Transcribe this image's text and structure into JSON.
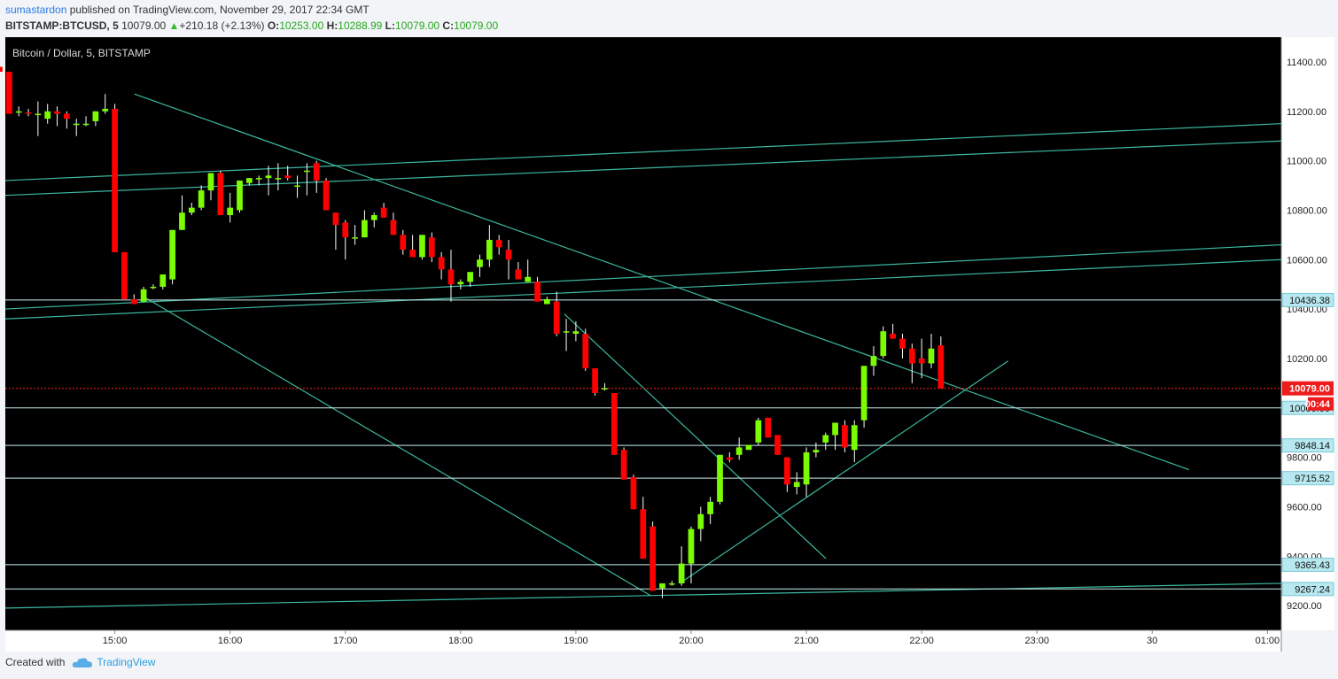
{
  "header": {
    "author": "sumastardon",
    "published": "published on TradingView.com, November 29, 2017 22:34 GMT",
    "symbol": "BITSTAMP:BTCUSD, 5",
    "price": "10079.00",
    "change": "+210.18 (+2.13%)",
    "o_label": "O:",
    "o": "10253.00",
    "h_label": "H:",
    "h": "10288.99",
    "l_label": "L:",
    "l": "10079.00",
    "c_label": "C:",
    "c": "10079.00"
  },
  "footer": {
    "created": "Created with",
    "brand": "TradingView"
  },
  "colors": {
    "up": "#7cfc00",
    "down": "#ff0000",
    "line": "#3cb8a0",
    "bg": "#000000"
  },
  "chart_data": {
    "type": "candlestick",
    "title": "Bitcoin / Dollar, 5, BITSTAMP",
    "ylim": [
      9100,
      11500
    ],
    "yticks": [
      9200,
      9400,
      9600,
      9800,
      10000,
      10200,
      10400,
      10600,
      10800,
      11000,
      11200,
      11400
    ],
    "xlim": [
      14.05,
      25.12
    ],
    "xticks": [
      {
        "x": 15,
        "label": "15:00"
      },
      {
        "x": 16,
        "label": "16:00"
      },
      {
        "x": 17,
        "label": "17:00"
      },
      {
        "x": 18,
        "label": "18:00"
      },
      {
        "x": 19,
        "label": "19:00"
      },
      {
        "x": 20,
        "label": "20:00"
      },
      {
        "x": 21,
        "label": "21:00"
      },
      {
        "x": 22,
        "label": "22:00"
      },
      {
        "x": 23,
        "label": "23:00"
      },
      {
        "x": 24,
        "label": "30"
      },
      {
        "x": 25,
        "label": "01:00"
      }
    ],
    "candles": [
      [
        11380,
        11400,
        11360,
        11360
      ],
      [
        11360,
        11360,
        11190,
        11190
      ],
      [
        11200,
        11220,
        11180,
        11200
      ],
      [
        11195,
        11210,
        11180,
        11190
      ],
      [
        11190,
        11240,
        11100,
        11190
      ],
      [
        11170,
        11230,
        11150,
        11200
      ],
      [
        11200,
        11220,
        11140,
        11190
      ],
      [
        11190,
        11200,
        11130,
        11170
      ],
      [
        11150,
        11170,
        11100,
        11150
      ],
      [
        11150,
        11180,
        11140,
        11150
      ],
      [
        11160,
        11200,
        11140,
        11200
      ],
      [
        11200,
        11270,
        11190,
        11210
      ],
      [
        11210,
        11230,
        10630,
        10630
      ],
      [
        10630,
        10630,
        10440,
        10440
      ],
      [
        10440,
        10460,
        10420,
        10420
      ],
      [
        10430,
        10490,
        10430,
        10480
      ],
      [
        10490,
        10500,
        10480,
        10490
      ],
      [
        10490,
        10540,
        10480,
        10540
      ],
      [
        10520,
        10720,
        10500,
        10720
      ],
      [
        10720,
        10860,
        10720,
        10790
      ],
      [
        10790,
        10830,
        10780,
        10810
      ],
      [
        10810,
        10900,
        10800,
        10880
      ],
      [
        10880,
        10950,
        10840,
        10950
      ],
      [
        10950,
        10960,
        10780,
        10780
      ],
      [
        10780,
        10870,
        10750,
        10810
      ],
      [
        10800,
        10920,
        10790,
        10920
      ],
      [
        10910,
        10930,
        10900,
        10930
      ],
      [
        10930,
        10940,
        10900,
        10930
      ],
      [
        10930,
        10980,
        10860,
        10940
      ],
      [
        10930,
        10990,
        10880,
        10930
      ],
      [
        10940,
        10980,
        10920,
        10930
      ],
      [
        10900,
        10940,
        10850,
        10900
      ],
      [
        10960,
        10990,
        10860,
        10960
      ],
      [
        10990,
        11000,
        10870,
        10920
      ],
      [
        10920,
        10930,
        10800,
        10800
      ],
      [
        10790,
        10790,
        10640,
        10740
      ],
      [
        10750,
        10760,
        10600,
        10690
      ],
      [
        10690,
        10740,
        10660,
        10690
      ],
      [
        10690,
        10800,
        10690,
        10760
      ],
      [
        10760,
        10790,
        10730,
        10780
      ],
      [
        10810,
        10830,
        10770,
        10770
      ],
      [
        10760,
        10790,
        10700,
        10700
      ],
      [
        10700,
        10720,
        10620,
        10640
      ],
      [
        10640,
        10700,
        10620,
        10610
      ],
      [
        10610,
        10700,
        10600,
        10700
      ],
      [
        10690,
        10710,
        10590,
        10610
      ],
      [
        10610,
        10630,
        10520,
        10560
      ],
      [
        10560,
        10640,
        10430,
        10500
      ],
      [
        10500,
        10520,
        10480,
        10510
      ],
      [
        10510,
        10540,
        10490,
        10550
      ],
      [
        10570,
        10620,
        10530,
        10600
      ],
      [
        10600,
        10740,
        10570,
        10680
      ],
      [
        10680,
        10700,
        10620,
        10650
      ],
      [
        10640,
        10680,
        10520,
        10600
      ],
      [
        10560,
        10590,
        10520,
        10520
      ],
      [
        10510,
        10600,
        10510,
        10530
      ],
      [
        10510,
        10530,
        10430,
        10430
      ],
      [
        10420,
        10450,
        10420,
        10440
      ],
      [
        10430,
        10470,
        10290,
        10300
      ],
      [
        10310,
        10360,
        10230,
        10310
      ],
      [
        10300,
        10350,
        10270,
        10310
      ],
      [
        10300,
        10320,
        10150,
        10160
      ],
      [
        10160,
        10160,
        10050,
        10060
      ],
      [
        10080,
        10100,
        10070,
        10080
      ],
      [
        10060,
        10060,
        9810,
        9810
      ],
      [
        9830,
        9840,
        9710,
        9710
      ],
      [
        9720,
        9730,
        9590,
        9590
      ],
      [
        9590,
        9640,
        9390,
        9390
      ],
      [
        9520,
        9540,
        9260,
        9260
      ],
      [
        9270,
        9290,
        9230,
        9290
      ],
      [
        9290,
        9300,
        9280,
        9290
      ],
      [
        9290,
        9440,
        9280,
        9370
      ],
      [
        9370,
        9520,
        9290,
        9510
      ],
      [
        9510,
        9600,
        9460,
        9570
      ],
      [
        9570,
        9640,
        9530,
        9620
      ],
      [
        9620,
        9810,
        9610,
        9810
      ],
      [
        9800,
        9820,
        9780,
        9790
      ],
      [
        9810,
        9880,
        9790,
        9840
      ],
      [
        9830,
        9850,
        9830,
        9850
      ],
      [
        9860,
        9960,
        9850,
        9950
      ],
      [
        9960,
        9960,
        9880,
        9880
      ],
      [
        9890,
        9890,
        9810,
        9810
      ],
      [
        9800,
        9800,
        9660,
        9690
      ],
      [
        9680,
        9740,
        9650,
        9700
      ],
      [
        9690,
        9840,
        9640,
        9820
      ],
      [
        9820,
        9860,
        9800,
        9830
      ],
      [
        9860,
        9900,
        9830,
        9890
      ],
      [
        9890,
        9940,
        9830,
        9940
      ],
      [
        9930,
        9950,
        9820,
        9840
      ],
      [
        9830,
        9950,
        9780,
        9930
      ],
      [
        9950,
        10170,
        9920,
        10170
      ],
      [
        10170,
        10250,
        10130,
        10210
      ],
      [
        10210,
        10330,
        10200,
        10310
      ],
      [
        10300,
        10340,
        10280,
        10280
      ],
      [
        10280,
        10300,
        10200,
        10240
      ],
      [
        10240,
        10260,
        10100,
        10180
      ],
      [
        10200,
        10280,
        10120,
        10180
      ],
      [
        10180,
        10300,
        10160,
        10240
      ],
      [
        10253,
        10288.99,
        10079,
        10079
      ]
    ],
    "trendlines": [
      {
        "x1": 14.05,
        "y1": 10920,
        "x2": 25.12,
        "y2": 11150
      },
      {
        "x1": 14.05,
        "y1": 10860,
        "x2": 25.12,
        "y2": 11080
      },
      {
        "x1": 14.05,
        "y1": 10400,
        "x2": 25.12,
        "y2": 10660
      },
      {
        "x1": 14.05,
        "y1": 10360,
        "x2": 25.12,
        "y2": 10600
      },
      {
        "x1": 14.05,
        "y1": 9190,
        "x2": 25.12,
        "y2": 9290
      },
      {
        "x1": 15.17,
        "y1": 11270,
        "x2": 24.32,
        "y2": 9750
      },
      {
        "x1": 15.25,
        "y1": 10450,
        "x2": 19.65,
        "y2": 9240
      },
      {
        "x1": 18.9,
        "y1": 10380,
        "x2": 21.17,
        "y2": 9390
      },
      {
        "x1": 19.9,
        "y1": 9290,
        "x2": 22.75,
        "y2": 10190
      }
    ],
    "hlines": [
      {
        "y": 10436.38,
        "label": "10436.38"
      },
      {
        "y": 10000,
        "label": "10000.00"
      },
      {
        "y": 9848.14,
        "label": "9848.14"
      },
      {
        "y": 9715.52,
        "label": "9715.52"
      },
      {
        "y": 9365.43,
        "label": "9365.43"
      },
      {
        "y": 9267.24,
        "label": "9267.24"
      }
    ],
    "last_price": {
      "y": 10079.0,
      "label": "10079.00",
      "countdown": "00:44"
    }
  }
}
